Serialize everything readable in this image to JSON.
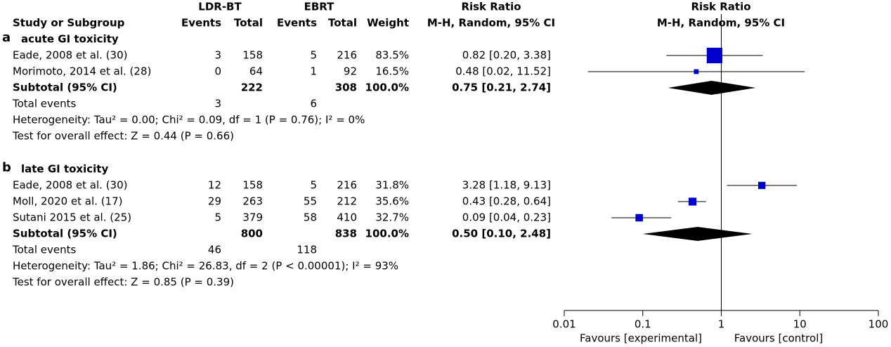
{
  "chart_data": {
    "type": "forest",
    "header": {
      "study": "Study or Subgroup",
      "group1": "LDR-BT",
      "group2": "EBRT",
      "events": "Events",
      "total": "Total",
      "weight": "Weight",
      "rr_title": "Risk Ratio",
      "rr_method": "M-H, Random, 95% CI",
      "plot_title": "Risk Ratio",
      "plot_method": "M-H, Random, 95% CI"
    },
    "subgroups": [
      {
        "letter": "a",
        "name": "acute GI toxicity",
        "studies": [
          {
            "name": "Eade, 2008 et al. (30)",
            "events1": 3,
            "total1": 158,
            "events2": 5,
            "total2": 216,
            "weight": 83.5,
            "weight_label": "83.5%",
            "rr": 0.82,
            "lower": 0.2,
            "upper": 3.38,
            "ci_label": "0.82 [0.20, 3.38]"
          },
          {
            "name": "Morimoto, 2014 et al. (28)",
            "events1": 0,
            "total1": 64,
            "events2": 1,
            "total2": 92,
            "weight": 16.5,
            "weight_label": "16.5%",
            "rr": 0.48,
            "lower": 0.02,
            "upper": 11.52,
            "ci_label": "0.48 [0.02, 11.52]"
          }
        ],
        "subtotal": {
          "name": "Subtotal (95% CI)",
          "total1": 222,
          "total2": 308,
          "weight": 100.0,
          "weight_label": "100.0%",
          "rr": 0.75,
          "lower": 0.21,
          "upper": 2.74,
          "ci_label": "0.75 [0.21, 2.74]"
        },
        "total_events": {
          "name": "Total events",
          "events1": 3,
          "events2": 6
        },
        "heterogeneity": "Heterogeneity: Tau² = 0.00; Chi² = 0.09, df = 1 (P = 0.76); I² = 0%",
        "overall": "Test for overall effect: Z = 0.44 (P = 0.66)"
      },
      {
        "letter": "b",
        "name": "late GI toxicity",
        "studies": [
          {
            "name": "Eade, 2008 et al. (30)",
            "events1": 12,
            "total1": 158,
            "events2": 5,
            "total2": 216,
            "weight": 31.8,
            "weight_label": "31.8%",
            "rr": 3.28,
            "lower": 1.18,
            "upper": 9.13,
            "ci_label": "3.28 [1.18, 9.13]"
          },
          {
            "name": "Moll, 2020 et al. (17)",
            "events1": 29,
            "total1": 263,
            "events2": 55,
            "total2": 212,
            "weight": 35.6,
            "weight_label": "35.6%",
            "rr": 0.43,
            "lower": 0.28,
            "upper": 0.64,
            "ci_label": "0.43 [0.28, 0.64]"
          },
          {
            "name": "Sutani 2015 et al. (25)",
            "events1": 5,
            "total1": 379,
            "events2": 58,
            "total2": 410,
            "weight": 32.7,
            "weight_label": "32.7%",
            "rr": 0.09,
            "lower": 0.04,
            "upper": 0.23,
            "ci_label": "0.09 [0.04, 0.23]"
          }
        ],
        "subtotal": {
          "name": "Subtotal (95% CI)",
          "total1": 800,
          "total2": 838,
          "weight": 100.0,
          "weight_label": "100.0%",
          "rr": 0.5,
          "lower": 0.1,
          "upper": 2.48,
          "ci_label": "0.50 [0.10, 2.48]"
        },
        "total_events": {
          "name": "Total events",
          "events1": 46,
          "events2": 118
        },
        "heterogeneity": "Heterogeneity: Tau² = 1.86; Chi² = 26.83, df = 2 (P < 0.00001); I² = 93%",
        "overall": "Test for overall effect: Z = 0.85 (P = 0.39)"
      }
    ],
    "xlim": [
      0.01,
      100
    ],
    "xticks": [
      0.01,
      0.1,
      1,
      10,
      100
    ],
    "log_x": true,
    "x_left_label": "Favours [experimental]",
    "x_right_label": "Favours [control]",
    "color": "#0000cc"
  }
}
